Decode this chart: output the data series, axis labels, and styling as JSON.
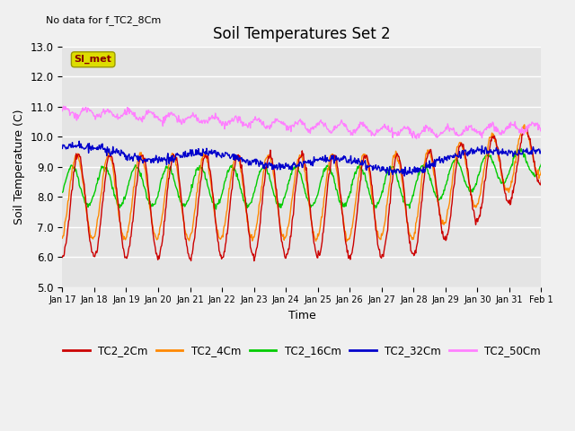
{
  "title": "Soil Temperatures Set 2",
  "subtitle": "No data for f_TC2_8Cm",
  "xlabel": "Time",
  "ylabel": "Soil Temperature (C)",
  "ylim": [
    5.0,
    13.0
  ],
  "yticks": [
    5.0,
    6.0,
    7.0,
    8.0,
    9.0,
    10.0,
    11.0,
    12.0,
    13.0
  ],
  "colors": {
    "TC2_2Cm": "#cc0000",
    "TC2_4Cm": "#ff8800",
    "TC2_16Cm": "#00cc00",
    "TC2_32Cm": "#0000cc",
    "TC2_50Cm": "#ff80ff"
  },
  "legend_box_color": "#dddd00",
  "legend_box_text": "SI_met",
  "background_color": "#e0e0e0",
  "grid_color": "#ffffff",
  "tick_labels": [
    "Jan 17",
    "Jan 18",
    "Jan 19",
    "Jan 20",
    "Jan 21",
    "Jan 22",
    "Jan 23",
    "Jan 24",
    "Jan 25",
    "Jan 26",
    "Jan 27",
    "Jan 28",
    "Jan 29",
    "Jan 30",
    "Jan 31",
    "Feb 1"
  ]
}
